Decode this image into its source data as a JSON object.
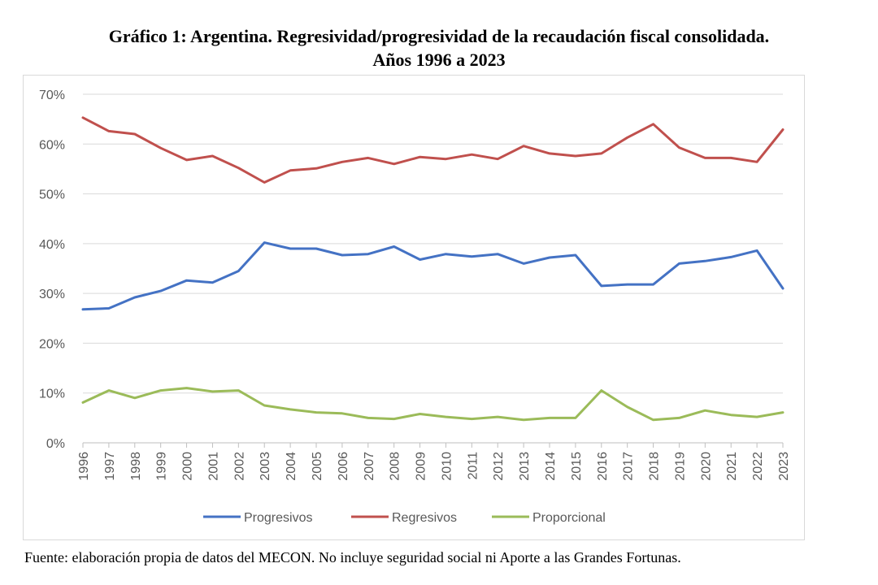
{
  "title_line1": "Gráfico 1: Argentina. Regresividad/progresividad  de la recaudación fiscal consolidada.",
  "title_line2": "Años 1996 a 2023",
  "source": "Fuente: elaboración propia de datos del MECON. No incluye seguridad social ni Aporte a las Grandes Fortunas.",
  "chart_data": {
    "type": "line",
    "title": "Gráfico 1: Argentina. Regresividad/progresividad  de la recaudación fiscal consolidada. Años 1996 a 2023",
    "xlabel": "",
    "ylabel": "",
    "ylim": [
      0,
      70
    ],
    "y_ticks": [
      "0%",
      "10%",
      "20%",
      "30%",
      "40%",
      "50%",
      "60%",
      "70%"
    ],
    "y_tick_values": [
      0,
      10,
      20,
      30,
      40,
      50,
      60,
      70
    ],
    "grid": true,
    "legend_position": "bottom",
    "categories": [
      "1996",
      "1997",
      "1998",
      "1999",
      "2000",
      "2001",
      "2002",
      "2003",
      "2004",
      "2005",
      "2006",
      "2007",
      "2008",
      "2009",
      "2010",
      "2011",
      "2012",
      "2013",
      "2014",
      "2015",
      "2016",
      "2017",
      "2018",
      "2019",
      "2020",
      "2021",
      "2022",
      "2023"
    ],
    "series": [
      {
        "name": "Progresivos",
        "color": "#4472C4",
        "values": [
          26.8,
          27.0,
          29.2,
          30.5,
          32.6,
          32.2,
          34.5,
          40.2,
          39.0,
          39.0,
          37.7,
          37.9,
          39.4,
          36.8,
          37.9,
          37.4,
          37.9,
          36.0,
          37.2,
          37.7,
          31.5,
          31.8,
          31.8,
          36.0,
          36.5,
          37.3,
          38.6,
          31.0
        ]
      },
      {
        "name": "Regresivos",
        "color": "#C0504D",
        "values": [
          65.3,
          62.6,
          62.0,
          59.2,
          56.8,
          57.6,
          55.2,
          52.3,
          54.7,
          55.1,
          56.4,
          57.2,
          56.0,
          57.4,
          57.0,
          57.9,
          57.0,
          59.6,
          58.1,
          57.6,
          58.1,
          61.3,
          64.0,
          59.3,
          57.2,
          57.2,
          56.4,
          62.9
        ]
      },
      {
        "name": "Proporcional",
        "color": "#9BBB59",
        "values": [
          8.1,
          10.5,
          9.0,
          10.5,
          11.0,
          10.3,
          10.5,
          7.5,
          6.7,
          6.1,
          5.9,
          5.0,
          4.8,
          5.8,
          5.2,
          4.8,
          5.2,
          4.6,
          5.0,
          5.0,
          10.5,
          7.2,
          4.6,
          5.0,
          6.5,
          5.6,
          5.2,
          6.1
        ]
      }
    ]
  }
}
